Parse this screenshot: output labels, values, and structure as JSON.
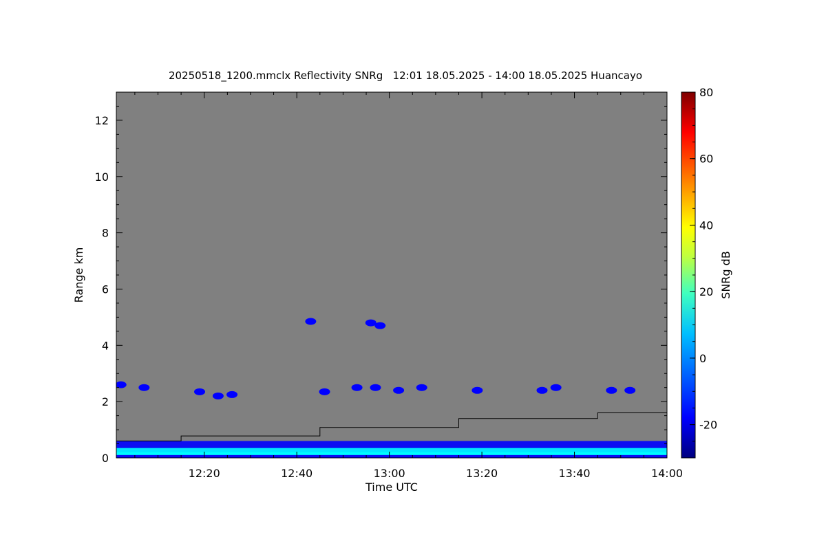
{
  "chart_data": {
    "type": "heatmap",
    "title": "20250518_1200.mmclx Reflectivity SNRg   12:01 18.05.2025 - 14:00 18.05.2025 Huancayo",
    "xlabel": "Time UTC",
    "ylabel": "Range km",
    "colorbar_label": "SNRg dB",
    "x_start": "12:01",
    "x_end": "14:00",
    "xlim": [
      1,
      120
    ],
    "ylim": [
      0,
      13
    ],
    "x_ticks": [
      {
        "v": 20,
        "label": "12:20"
      },
      {
        "v": 40,
        "label": "12:40"
      },
      {
        "v": 60,
        "label": "13:00"
      },
      {
        "v": 80,
        "label": "13:20"
      },
      {
        "v": 100,
        "label": "13:40"
      },
      {
        "v": 120,
        "label": "14:00"
      }
    ],
    "y_ticks": [
      {
        "v": 0,
        "label": "0"
      },
      {
        "v": 2,
        "label": "2"
      },
      {
        "v": 4,
        "label": "4"
      },
      {
        "v": 6,
        "label": "6"
      },
      {
        "v": 8,
        "label": "8"
      },
      {
        "v": 10,
        "label": "10"
      },
      {
        "v": 12,
        "label": "12"
      }
    ],
    "colorbar": {
      "range": [
        -30,
        80
      ],
      "ticks": [
        {
          "v": -20,
          "label": "-20"
        },
        {
          "v": 0,
          "label": "0"
        },
        {
          "v": 20,
          "label": "20"
        },
        {
          "v": 40,
          "label": "40"
        },
        {
          "v": 60,
          "label": "60"
        },
        {
          "v": 80,
          "label": "80"
        }
      ],
      "colors": [
        "#00007f",
        "#0000ff",
        "#007fff",
        "#00ffff",
        "#7fff7f",
        "#ffff00",
        "#ff7f00",
        "#ff0000",
        "#7f0000"
      ]
    },
    "background_color": "#808080",
    "threshold_line": [
      {
        "t": 1,
        "km": 0.6
      },
      {
        "t": 15,
        "km": 0.6
      },
      {
        "t": 15,
        "km": 0.78
      },
      {
        "t": 45,
        "km": 0.78
      },
      {
        "t": 45,
        "km": 1.08
      },
      {
        "t": 75,
        "km": 1.08
      },
      {
        "t": 75,
        "km": 1.4
      },
      {
        "t": 105,
        "km": 1.4
      },
      {
        "t": 105,
        "km": 1.6
      },
      {
        "t": 120,
        "km": 1.6
      }
    ],
    "echo_layers": [
      {
        "from": 1,
        "to": 120,
        "bottom_km": 0.0,
        "top_km": 0.6,
        "snr_db": -12
      },
      {
        "from": 1,
        "to": 120,
        "bottom_km": 0.1,
        "top_km": 0.35,
        "snr_db": 5
      },
      {
        "from": 1,
        "to": 120,
        "bottom_km": 0.12,
        "top_km": 0.2,
        "snr_db": 12
      }
    ],
    "echo_patches": [
      {
        "t": 2,
        "km": 2.6,
        "snr_db": -22
      },
      {
        "t": 7,
        "km": 2.5,
        "snr_db": -22
      },
      {
        "t": 19,
        "km": 2.35,
        "snr_db": -22
      },
      {
        "t": 23,
        "km": 2.2,
        "snr_db": -22
      },
      {
        "t": 26,
        "km": 2.25,
        "snr_db": -22
      },
      {
        "t": 46,
        "km": 2.35,
        "snr_db": -22
      },
      {
        "t": 53,
        "km": 2.5,
        "snr_db": -22
      },
      {
        "t": 57,
        "km": 2.5,
        "snr_db": -22
      },
      {
        "t": 62,
        "km": 2.4,
        "snr_db": -22
      },
      {
        "t": 67,
        "km": 2.5,
        "snr_db": -22
      },
      {
        "t": 79,
        "km": 2.4,
        "snr_db": -22
      },
      {
        "t": 93,
        "km": 2.4,
        "snr_db": -22
      },
      {
        "t": 96,
        "km": 2.5,
        "snr_db": -22
      },
      {
        "t": 108,
        "km": 2.4,
        "snr_db": -22
      },
      {
        "t": 112,
        "km": 2.4,
        "snr_db": -22
      },
      {
        "t": 43,
        "km": 4.85,
        "snr_db": -22
      },
      {
        "t": 56,
        "km": 4.8,
        "snr_db": -20
      },
      {
        "t": 58,
        "km": 4.7,
        "snr_db": -18
      }
    ]
  }
}
